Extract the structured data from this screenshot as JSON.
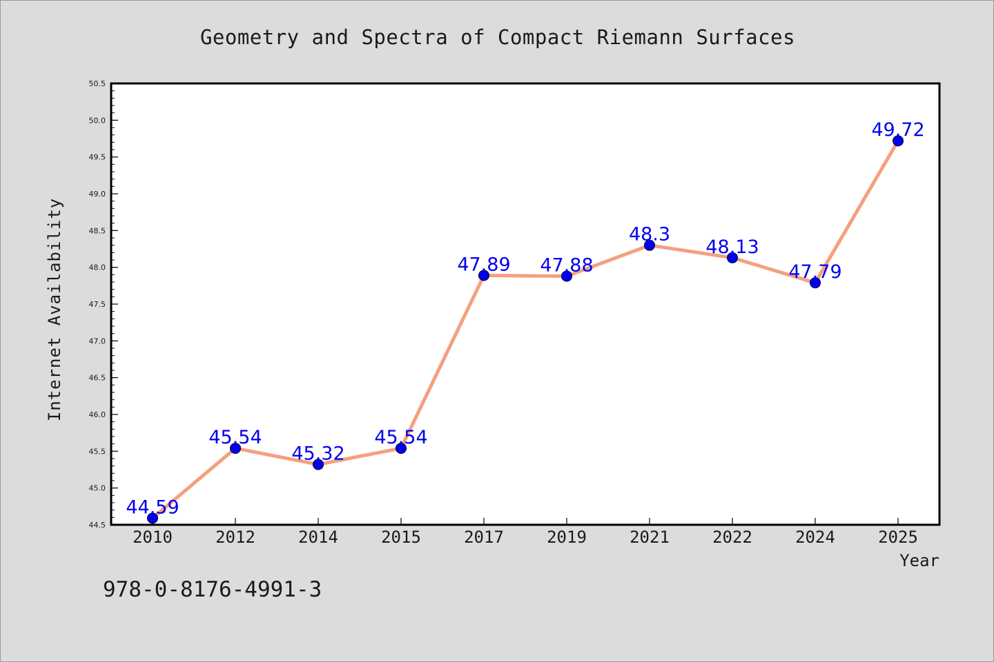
{
  "footer_text": "978-0-8176-4991-3",
  "colors": {
    "background": "#dcdcdc",
    "plot_background": "#ffffff",
    "line": "#f4a07f",
    "marker": "#0000ee",
    "data_label": "#0000ee",
    "text": "#1a1a1a"
  },
  "chart_data": {
    "type": "line",
    "title": "Geometry and Spectra of Compact Riemann Surfaces",
    "xlabel": "Year",
    "ylabel": "Internet Availability",
    "categories": [
      "2010",
      "2012",
      "2014",
      "2015",
      "2017",
      "2019",
      "2021",
      "2022",
      "2024",
      "2025"
    ],
    "series": [
      {
        "values": [
          44.59,
          45.54,
          45.32,
          45.54,
          47.89,
          47.88,
          48.3,
          48.13,
          47.79,
          49.72
        ],
        "labels": [
          "44.59",
          "45.54",
          "45.32",
          "45.54",
          "47.89",
          "47.88",
          "48.3",
          "48.13",
          "47.79",
          "49.72"
        ]
      }
    ],
    "ylim": [
      44.5,
      50.5
    ],
    "yticks": [
      "44.5",
      "45.0",
      "45.5",
      "46.0",
      "46.5",
      "47.0",
      "47.5",
      "48.0",
      "48.5",
      "49.0",
      "49.5",
      "50.0",
      "50.5"
    ],
    "grid": false,
    "legend": "none"
  }
}
